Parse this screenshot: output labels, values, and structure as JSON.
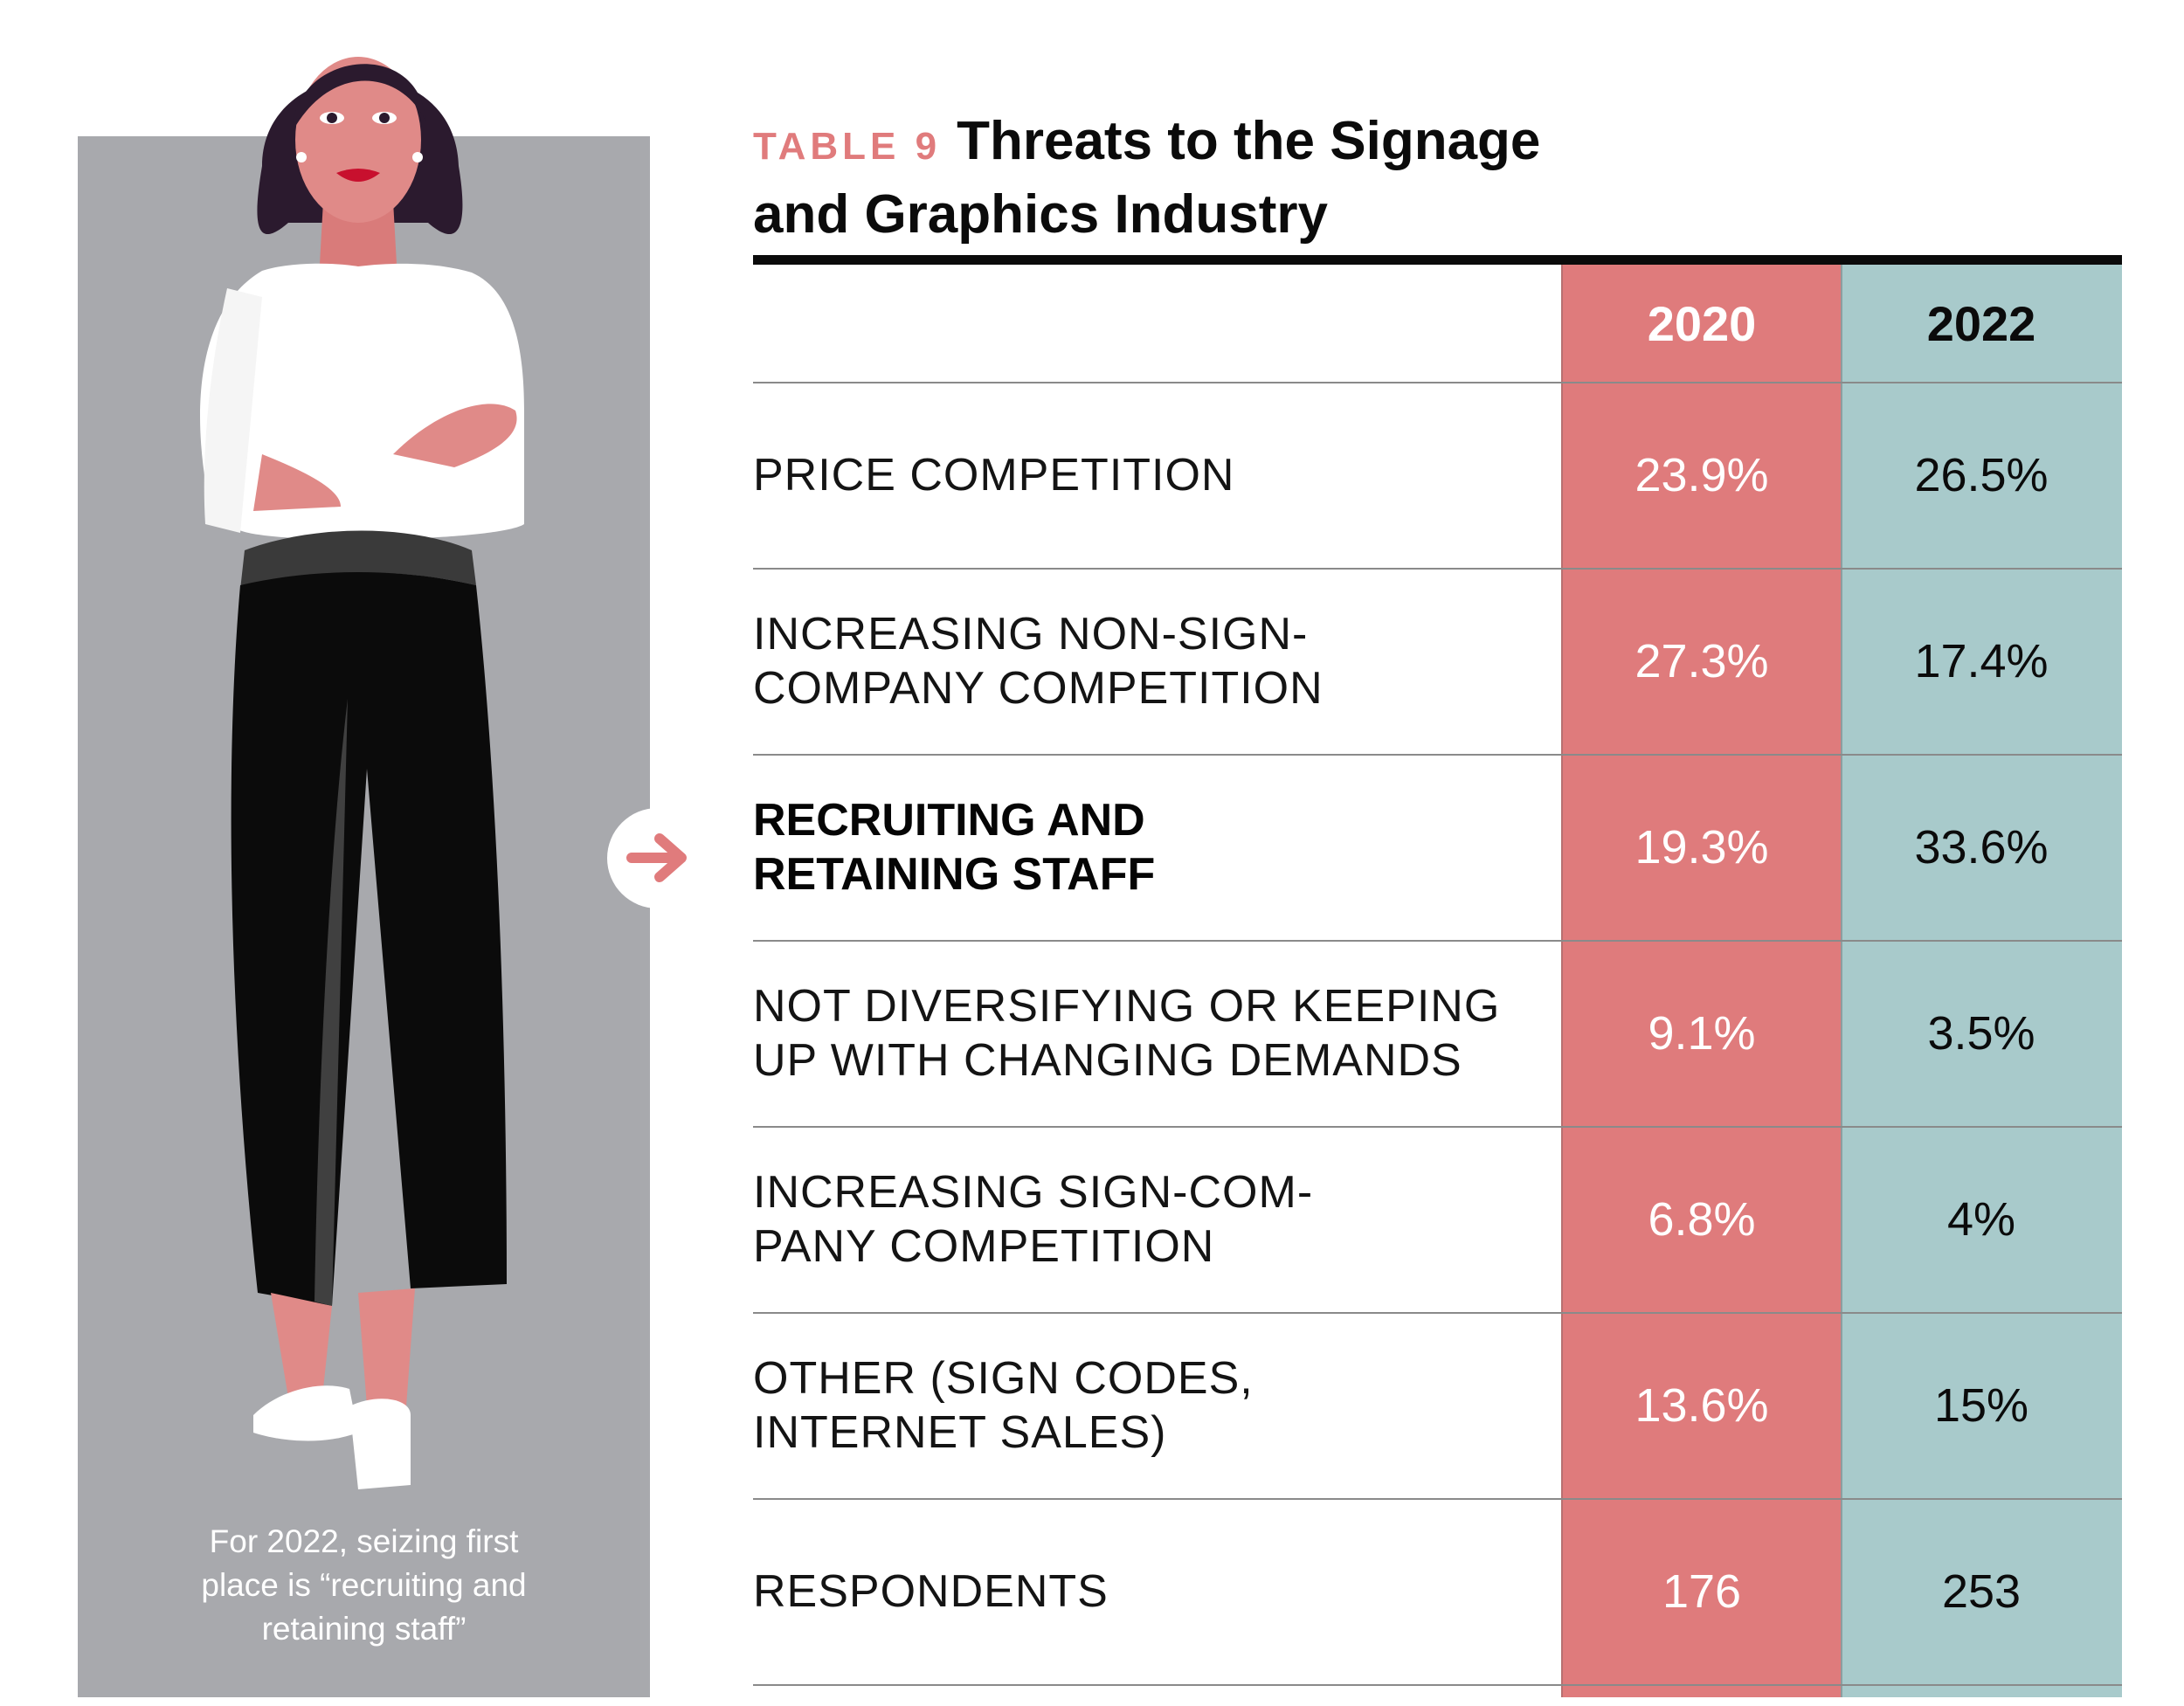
{
  "illustration": {
    "caption_lines": [
      "For 2022, seizing first",
      "place is “recruiting and",
      "retaining staff”"
    ]
  },
  "chart_data": {
    "type": "table",
    "table_label": "TABLE 9",
    "title_lines": [
      "Threats to the Signage",
      "and Graphics Industry"
    ],
    "columns": [
      "2020",
      "2022"
    ],
    "rows": [
      {
        "label_lines": [
          "PRICE COMPETITION"
        ],
        "values": [
          "23.9%",
          "26.5%"
        ],
        "highlight": false
      },
      {
        "label_lines": [
          "INCREASING NON-SIGN-",
          "COMPANY COMPETITION"
        ],
        "values": [
          "27.3%",
          "17.4%"
        ],
        "highlight": false
      },
      {
        "label_lines": [
          "RECRUITING AND",
          "RETAINING STAFF"
        ],
        "values": [
          "19.3%",
          "33.6%"
        ],
        "highlight": true
      },
      {
        "label_lines": [
          "NOT DIVERSIFYING OR KEEPING",
          "UP WITH CHANGING DEMANDS"
        ],
        "values": [
          "9.1%",
          "3.5%"
        ],
        "highlight": false
      },
      {
        "label_lines": [
          "INCREASING SIGN-COM-",
          "PANY COMPETITION"
        ],
        "values": [
          "6.8%",
          "4%"
        ],
        "highlight": false
      },
      {
        "label_lines": [
          "OTHER (SIGN CODES,",
          "INTERNET SALES)"
        ],
        "values": [
          "13.6%",
          "15%"
        ],
        "highlight": false
      },
      {
        "label_lines": [
          "RESPONDENTS"
        ],
        "values": [
          "176",
          "253"
        ],
        "highlight": false
      }
    ],
    "colors": {
      "col_2020": "#df7b7c",
      "col_2022": "#a8cacb",
      "accent": "#e07b7c"
    }
  }
}
